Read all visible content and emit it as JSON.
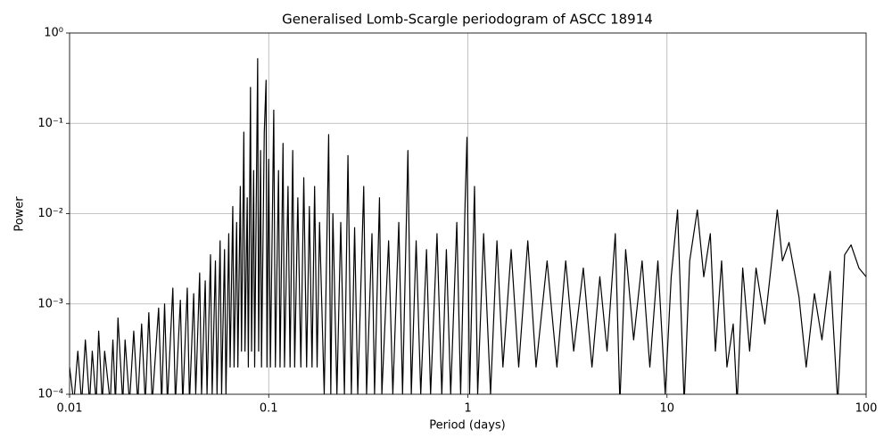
{
  "chart_data": {
    "type": "line",
    "title": "Generalised Lomb-Scargle periodogram of ASCC 18914",
    "x_label": "Period (days)",
    "y_label": "Power",
    "x_scale": "log",
    "y_scale": "log",
    "grid": true,
    "color": "#000000",
    "xlim": [
      0.01,
      100
    ],
    "xticks": [
      0.01,
      0.1,
      1,
      10,
      100
    ],
    "ylim": [
      0.0001,
      1
    ],
    "yticks": [
      {
        "value": 0.0001,
        "label": "10⁻⁴"
      },
      {
        "value": 0.001,
        "label": "10⁻³"
      },
      {
        "value": 0.01,
        "label": "10⁻²"
      },
      {
        "value": 0.1,
        "label": "10⁻¹"
      },
      {
        "value": 1,
        "label": "10⁰"
      }
    ],
    "x": [
      0.01,
      0.0105,
      0.011,
      0.0115,
      0.012,
      0.0126,
      0.013,
      0.0136,
      0.014,
      0.0146,
      0.015,
      0.016,
      0.0165,
      0.017,
      0.0175,
      0.0185,
      0.019,
      0.02,
      0.021,
      0.022,
      0.023,
      0.024,
      0.025,
      0.026,
      0.028,
      0.029,
      0.03,
      0.031,
      0.033,
      0.034,
      0.036,
      0.037,
      0.039,
      0.04,
      0.042,
      0.043,
      0.045,
      0.046,
      0.048,
      0.049,
      0.051,
      0.052,
      0.054,
      0.055,
      0.057,
      0.058,
      0.06,
      0.061,
      0.063,
      0.064,
      0.066,
      0.067,
      0.069,
      0.07,
      0.072,
      0.073,
      0.075,
      0.076,
      0.078,
      0.079,
      0.081,
      0.082,
      0.084,
      0.085,
      0.088,
      0.089,
      0.091,
      0.092,
      0.095,
      0.097,
      0.098,
      0.1,
      0.102,
      0.106,
      0.108,
      0.112,
      0.114,
      0.118,
      0.12,
      0.125,
      0.128,
      0.132,
      0.135,
      0.14,
      0.145,
      0.15,
      0.155,
      0.16,
      0.165,
      0.17,
      0.175,
      0.18,
      0.19,
      0.2,
      0.205,
      0.21,
      0.22,
      0.23,
      0.24,
      0.25,
      0.26,
      0.27,
      0.28,
      0.3,
      0.31,
      0.33,
      0.34,
      0.36,
      0.37,
      0.4,
      0.42,
      0.45,
      0.47,
      0.5,
      0.52,
      0.55,
      0.58,
      0.62,
      0.65,
      0.7,
      0.74,
      0.78,
      0.82,
      0.88,
      0.92,
      0.97,
      0.99,
      1.02,
      1.08,
      1.12,
      1.2,
      1.3,
      1.4,
      1.5,
      1.65,
      1.8,
      2,
      2.2,
      2.5,
      2.8,
      3.1,
      3.4,
      3.8,
      4.2,
      4.6,
      5,
      5.5,
      5.8,
      6.2,
      6.8,
      7.5,
      8.2,
      9,
      9.8,
      10.5,
      11.3,
      12.2,
      13,
      14.2,
      15.3,
      16.5,
      17.5,
      18.8,
      20,
      21.5,
      22.5,
      24,
      26,
      28,
      31,
      35.8,
      38,
      41,
      46,
      50,
      55,
      60,
      66,
      72,
      78,
      84,
      92,
      100
    ],
    "values": [
      0.0002,
      8e-05,
      0.0003,
      8e-05,
      0.0004,
      8e-05,
      0.0003,
      8e-05,
      0.0005,
      8e-05,
      0.0003,
      8e-05,
      0.0004,
      8e-05,
      0.0007,
      8e-05,
      0.0004,
      8e-05,
      0.0005,
      8e-05,
      0.0006,
      8e-05,
      0.0008,
      8e-05,
      0.0009,
      8e-05,
      0.001,
      8e-05,
      0.0015,
      8e-05,
      0.0011,
      8e-05,
      0.0015,
      8e-05,
      0.0013,
      0.0001,
      0.0022,
      0.0001,
      0.0018,
      0.0001,
      0.0035,
      0.0001,
      0.003,
      0.0001,
      0.005,
      0.0001,
      0.004,
      0.0001,
      0.006,
      0.0002,
      0.012,
      0.0002,
      0.008,
      0.0002,
      0.02,
      0.0003,
      0.08,
      0.0003,
      0.015,
      0.0002,
      0.25,
      0.0003,
      0.03,
      0.0002,
      0.52,
      0.0003,
      0.05,
      0.0002,
      0.08,
      0.3,
      0.0002,
      0.04,
      0.0002,
      0.14,
      0.0002,
      0.03,
      0.0002,
      0.06,
      0.0002,
      0.02,
      0.0002,
      0.05,
      0.0002,
      0.015,
      0.0002,
      0.025,
      0.0002,
      0.012,
      0.0002,
      0.02,
      0.0002,
      0.008,
      0.0001,
      0.075,
      0.0001,
      0.01,
      0.0001,
      0.008,
      0.0001,
      0.044,
      0.0001,
      0.007,
      0.0001,
      0.02,
      0.0001,
      0.006,
      0.0001,
      0.015,
      0.0001,
      0.005,
      0.0001,
      0.008,
      0.0001,
      0.05,
      0.0001,
      0.005,
      0.0001,
      0.004,
      0.0001,
      0.006,
      0.0001,
      0.004,
      0.0001,
      0.008,
      0.0001,
      0.015,
      0.07,
      0.0001,
      0.02,
      0.0001,
      0.006,
      0.0001,
      0.005,
      0.0002,
      0.004,
      0.0002,
      0.005,
      0.0002,
      0.003,
      0.0002,
      0.003,
      0.0003,
      0.0025,
      0.0002,
      0.002,
      0.0003,
      0.006,
      8e-05,
      0.004,
      0.0004,
      0.003,
      0.0002,
      0.003,
      0.0001,
      0.002,
      0.011,
      8e-05,
      0.003,
      0.011,
      0.002,
      0.006,
      0.0003,
      0.003,
      0.0002,
      0.0006,
      8e-05,
      0.0025,
      0.0003,
      0.0025,
      0.0006,
      0.011,
      0.003,
      0.0048,
      0.0012,
      0.0002,
      0.0013,
      0.0004,
      0.0023,
      8e-05,
      0.0035,
      0.0045,
      0.0025,
      0.002
    ]
  }
}
